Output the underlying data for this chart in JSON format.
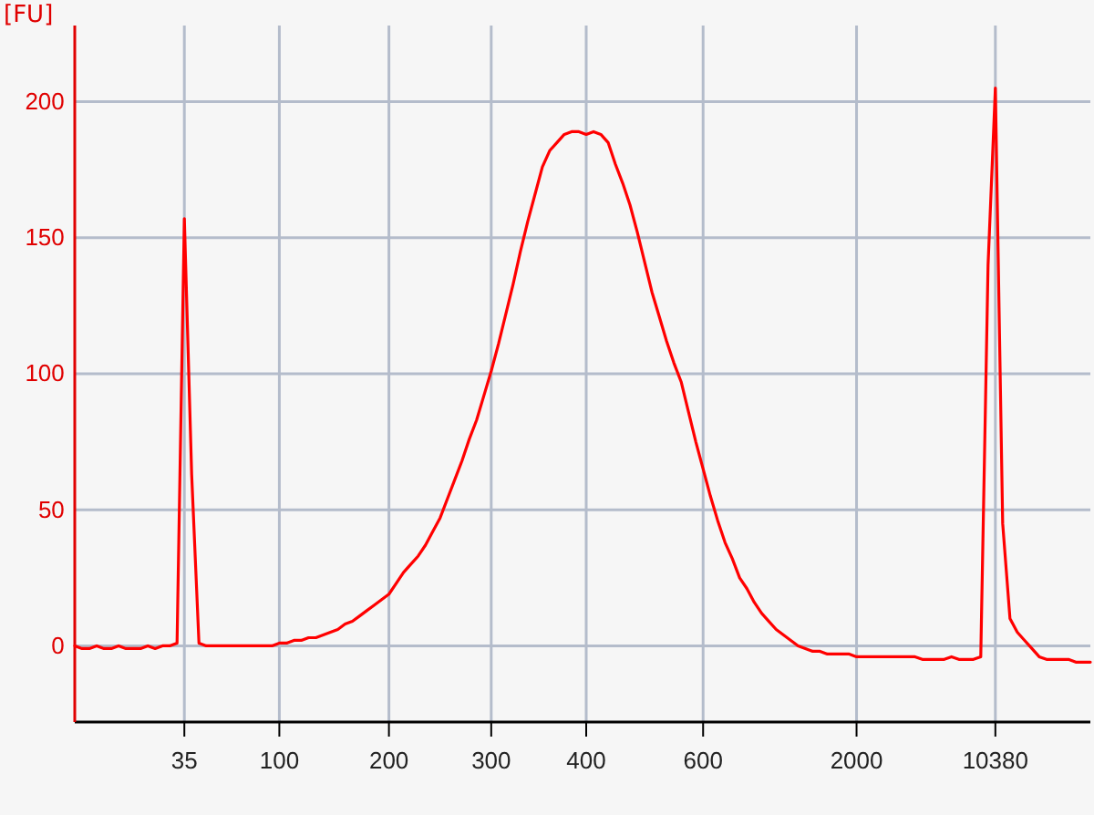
{
  "chart_data": {
    "type": "line",
    "ylabel": "[FU]",
    "categories": [
      null,
      null,
      null,
      null,
      null,
      null,
      null,
      null,
      null,
      null,
      null,
      null,
      null,
      null,
      null,
      "35",
      null,
      null,
      null,
      null,
      null,
      null,
      null,
      null,
      null,
      null,
      null,
      null,
      "100",
      null,
      null,
      null,
      null,
      null,
      null,
      null,
      null,
      null,
      null,
      null,
      null,
      null,
      null,
      "200",
      null,
      null,
      null,
      null,
      null,
      null,
      null,
      null,
      null,
      null,
      null,
      null,
      null,
      "300",
      null,
      null,
      null,
      null,
      null,
      null,
      null,
      null,
      null,
      null,
      null,
      null,
      "400",
      null,
      null,
      null,
      null,
      null,
      null,
      null,
      null,
      null,
      null,
      null,
      null,
      null,
      null,
      null,
      "600",
      null,
      null,
      null,
      null,
      null,
      null,
      null,
      null,
      null,
      null,
      null,
      null,
      null,
      null,
      null,
      null,
      null,
      null,
      null,
      null,
      "2000",
      null,
      null,
      null,
      null,
      null,
      null,
      null,
      null,
      null,
      null,
      null,
      null,
      null,
      null,
      null,
      null,
      null,
      null,
      "10380",
      null,
      null,
      null,
      null,
      null,
      null,
      null,
      null,
      null,
      null,
      null,
      null,
      null
    ],
    "series": [
      {
        "color": "#ff0000",
        "values": [
          0,
          -1,
          -1,
          0,
          -1,
          -1,
          0,
          -1,
          -1,
          -1,
          0,
          -1,
          0,
          0,
          1,
          157,
          63,
          1,
          0,
          0,
          0,
          0,
          0,
          0,
          0,
          0,
          0,
          0,
          1,
          1,
          2,
          2,
          3,
          3,
          4,
          5,
          6,
          8,
          9,
          11,
          13,
          15,
          17,
          19,
          23,
          27,
          30,
          33,
          37,
          42,
          47,
          54,
          61,
          68,
          76,
          83,
          92,
          101,
          111,
          122,
          133,
          145,
          156,
          166,
          176,
          182,
          185,
          188,
          189,
          189,
          188,
          189,
          188,
          185,
          177,
          170,
          162,
          152,
          141,
          130,
          121,
          112,
          104,
          97,
          86,
          75,
          65,
          55,
          46,
          38,
          32,
          25,
          21,
          16,
          12,
          9,
          6,
          4,
          2,
          0,
          -1,
          -2,
          -2,
          -3,
          -3,
          -3,
          -3,
          -4,
          -4,
          -4,
          -4,
          -4,
          -4,
          -4,
          -4,
          -4,
          -5,
          -5,
          -5,
          -5,
          -4,
          -5,
          -5,
          -5,
          -4,
          140,
          205,
          45,
          10,
          5,
          2,
          -1,
          -4,
          -5,
          -5,
          -5,
          -5,
          -6,
          -6,
          -6
        ]
      }
    ],
    "ylim": [
      -28,
      228
    ],
    "yticks": [
      0,
      50,
      100,
      150,
      200
    ],
    "grid": true,
    "marker": "none",
    "line_style": "solid"
  }
}
